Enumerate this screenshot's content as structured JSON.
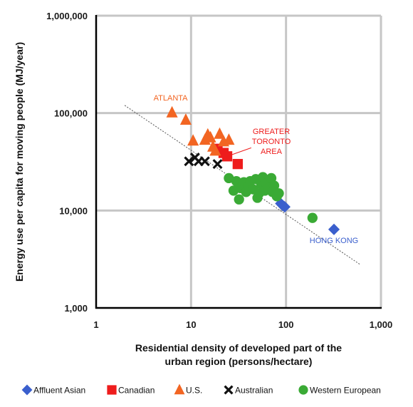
{
  "chart_data": {
    "type": "scatter",
    "title": "",
    "xlabel_lines": [
      "Residential density of developed part of the",
      "urban region (persons/hectare)"
    ],
    "ylabel": "Energy use per capita for moving people (MJ/year)",
    "x_scale": "log",
    "y_scale": "log",
    "xlim": [
      1,
      1000
    ],
    "ylim": [
      1000,
      1000000
    ],
    "x_ticks": [
      1,
      10,
      100,
      1000
    ],
    "x_tick_labels": [
      "1",
      "10",
      "100",
      "1,000"
    ],
    "y_ticks": [
      1000,
      10000,
      100000,
      1000000
    ],
    "y_tick_labels": [
      "1,000",
      "10,000",
      "100,000",
      "1,000,000"
    ],
    "grid": true,
    "legend_position": "bottom",
    "trendline": {
      "style": "dotted",
      "from": [
        2,
        120000
      ],
      "to": [
        600,
        2800
      ]
    },
    "series": [
      {
        "name": "Affluent Asian",
        "marker": "diamond",
        "color": "#3a5fcd",
        "points": [
          [
            88,
            11800
          ],
          [
            92,
            11300
          ],
          [
            97,
            10900
          ],
          [
            320,
            6400
          ]
        ]
      },
      {
        "name": "Canadian",
        "marker": "square",
        "color": "#ee1c1c",
        "points": [
          [
            19,
            43000
          ],
          [
            24,
            36000
          ],
          [
            31,
            30000
          ],
          [
            22,
            39000
          ]
        ]
      },
      {
        "name": "U.S.",
        "marker": "triangle",
        "color": "#f26522",
        "points": [
          [
            6.3,
            101000
          ],
          [
            8.8,
            85000
          ],
          [
            10.5,
            52000
          ],
          [
            14,
            53000
          ],
          [
            15,
            60000
          ],
          [
            16,
            56000
          ],
          [
            17,
            45000
          ],
          [
            18,
            41000
          ],
          [
            20,
            61000
          ],
          [
            22,
            51000
          ],
          [
            25,
            53000
          ]
        ]
      },
      {
        "name": "Australian",
        "marker": "x",
        "color": "#111111",
        "points": [
          [
            9.5,
            32000
          ],
          [
            11,
            35000
          ],
          [
            12,
            32000
          ],
          [
            14,
            32000
          ],
          [
            19,
            30000
          ]
        ]
      },
      {
        "name": "Western European",
        "marker": "circle",
        "color": "#3aaa35",
        "points": [
          [
            25,
            21500
          ],
          [
            28,
            16000
          ],
          [
            30,
            20000
          ],
          [
            33,
            17000
          ],
          [
            35,
            18500
          ],
          [
            36,
            19500
          ],
          [
            38,
            15500
          ],
          [
            40,
            18000
          ],
          [
            42,
            20000
          ],
          [
            45,
            16500
          ],
          [
            48,
            21000
          ],
          [
            50,
            13500
          ],
          [
            52,
            15000
          ],
          [
            55,
            18500
          ],
          [
            57,
            22000
          ],
          [
            60,
            16000
          ],
          [
            62,
            19000
          ],
          [
            65,
            17000
          ],
          [
            70,
            21500
          ],
          [
            72,
            15500
          ],
          [
            75,
            18000
          ],
          [
            80,
            14000
          ],
          [
            84,
            15000
          ],
          [
            32,
            13000
          ],
          [
            190,
            8400
          ]
        ]
      }
    ],
    "annotations": [
      {
        "text": "ATLANTA",
        "color": "#f26522",
        "lines": [
          "ATLANTA"
        ]
      },
      {
        "text": "GREATER TORONTO AREA",
        "color": "#ee1c1c",
        "lines": [
          "GREATER",
          "TORONTO",
          "AREA"
        ]
      },
      {
        "text": "HONG KONG",
        "color": "#3a5fcd",
        "lines": [
          "HONG KONG"
        ]
      }
    ]
  }
}
